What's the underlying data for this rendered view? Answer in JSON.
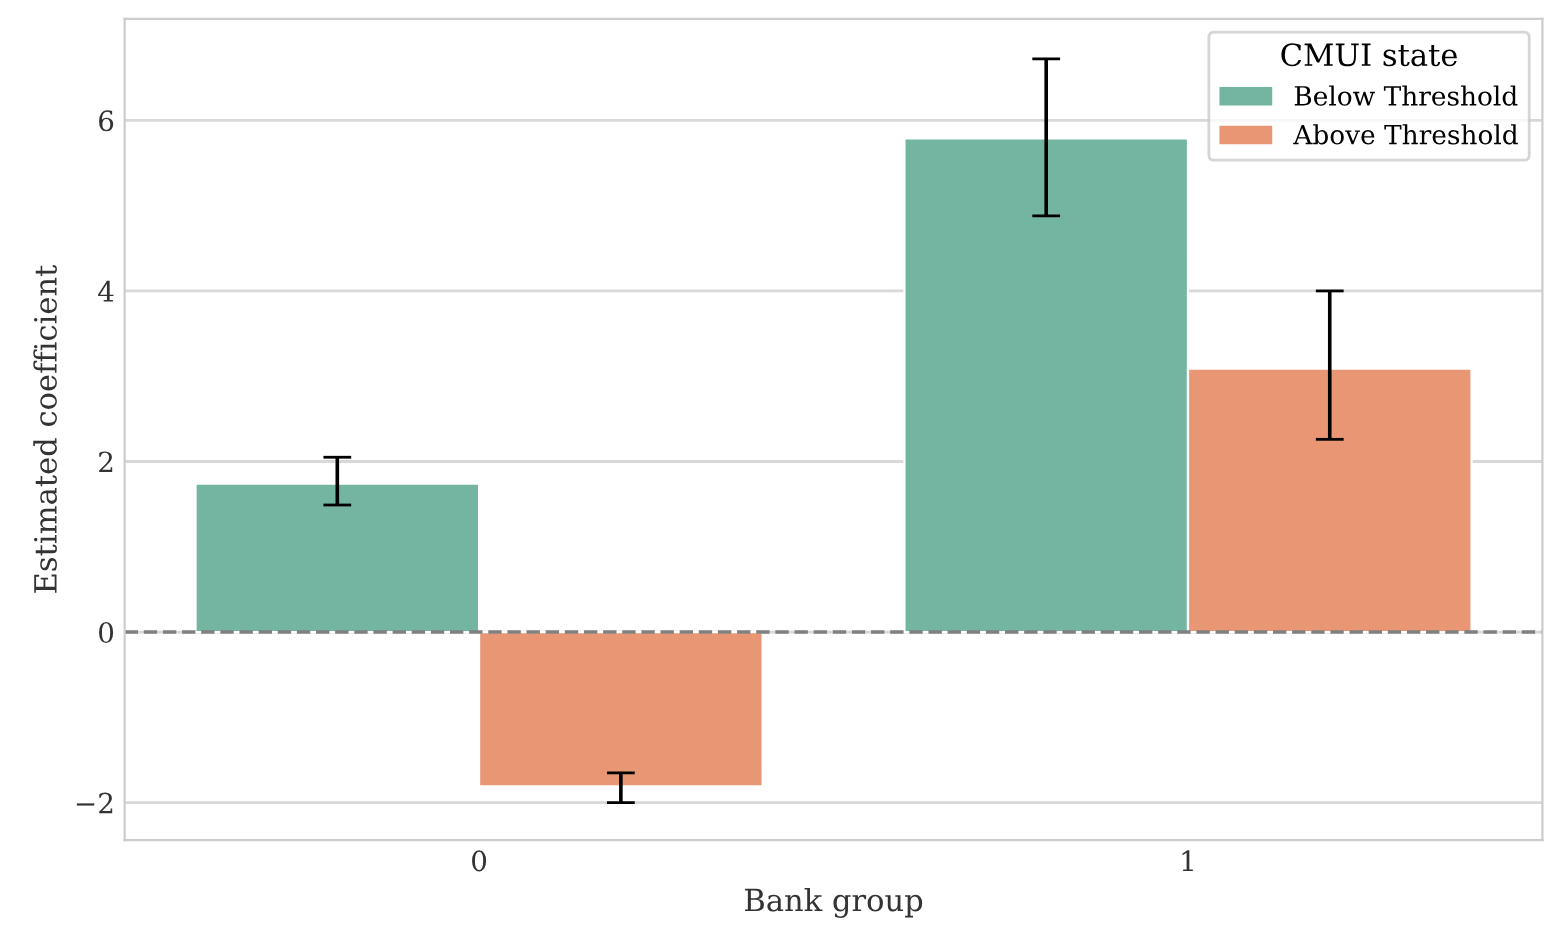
{
  "chart_data": {
    "type": "bar",
    "xlabel": "Bank group",
    "ylabel": "Estimated coefficient",
    "legend_title": "CMUI state",
    "categories": [
      "0",
      "1"
    ],
    "series": [
      {
        "name": "Below Threshold",
        "color": "#73b5a0",
        "values": [
          1.74,
          5.79
        ],
        "errors": [
          [
            1.49,
            2.05
          ],
          [
            4.88,
            6.72
          ]
        ]
      },
      {
        "name": "Above Threshold",
        "color": "#e89674",
        "values": [
          -1.81,
          3.09
        ],
        "errors": [
          [
            -2.0,
            -1.65
          ],
          [
            2.26,
            4.0
          ]
        ]
      }
    ],
    "ylim": [
      -2.44,
      7.19
    ],
    "yticks": [
      -2,
      0,
      2,
      4,
      6
    ],
    "grid": "y",
    "legend": "top right",
    "ref_lines": [
      {
        "axis": "y",
        "value": 0,
        "color": "#808080",
        "line_style": "dashed"
      }
    ]
  }
}
